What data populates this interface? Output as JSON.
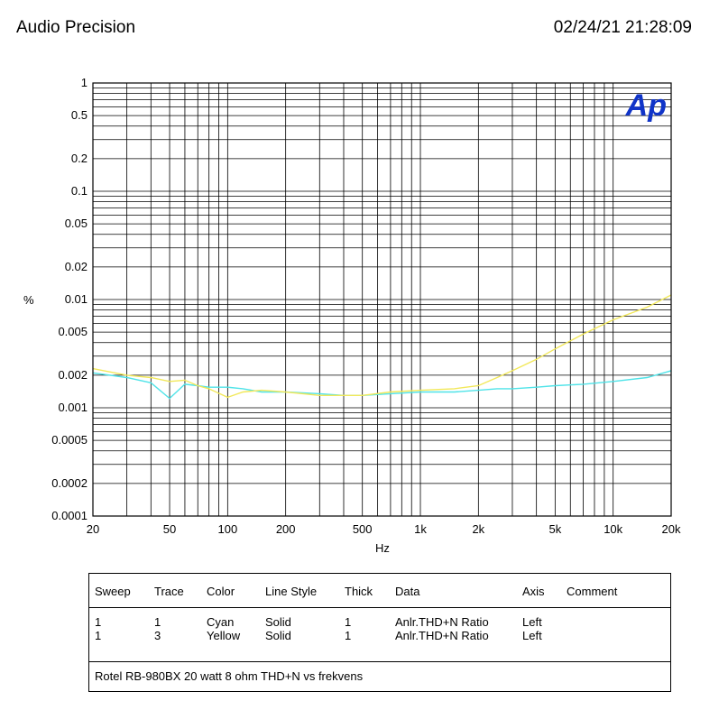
{
  "header": {
    "left": "Audio Precision",
    "right": "02/24/21 21:28:09"
  },
  "logo": "Ap",
  "colors": {
    "cyan": "#4fe3e8",
    "yellow": "#f2e85a",
    "logo": "#1034c8",
    "grid": "#000000"
  },
  "chart_data": {
    "type": "line",
    "xscale": "log",
    "yscale": "log",
    "xlim": [
      20,
      20000
    ],
    "ylim": [
      0.0001,
      1
    ],
    "xlabel": "Hz",
    "ylabel": "%",
    "grid": true,
    "xticks": [
      {
        "v": 20,
        "label": "20"
      },
      {
        "v": 50,
        "label": "50"
      },
      {
        "v": 100,
        "label": "100"
      },
      {
        "v": 200,
        "label": "200"
      },
      {
        "v": 500,
        "label": "500"
      },
      {
        "v": 1000,
        "label": "1k"
      },
      {
        "v": 2000,
        "label": "2k"
      },
      {
        "v": 5000,
        "label": "5k"
      },
      {
        "v": 10000,
        "label": "10k"
      },
      {
        "v": 20000,
        "label": "20k"
      }
    ],
    "yticks": [
      {
        "v": 1,
        "label": "1"
      },
      {
        "v": 0.5,
        "label": "0.5"
      },
      {
        "v": 0.2,
        "label": "0.2"
      },
      {
        "v": 0.1,
        "label": "0.1"
      },
      {
        "v": 0.05,
        "label": "0.05"
      },
      {
        "v": 0.02,
        "label": "0.02"
      },
      {
        "v": 0.01,
        "label": "0.01"
      },
      {
        "v": 0.005,
        "label": "0.005"
      },
      {
        "v": 0.002,
        "label": "0.002"
      },
      {
        "v": 0.001,
        "label": "0.001"
      },
      {
        "v": 0.0005,
        "label": "0.0005"
      },
      {
        "v": 0.0002,
        "label": "0.0002"
      },
      {
        "v": 0.0001,
        "label": "0.0001"
      }
    ],
    "series": [
      {
        "name": "Cyan",
        "color": "#4fe3e8",
        "x": [
          20,
          30,
          40,
          50,
          60,
          70,
          80,
          100,
          120,
          150,
          200,
          300,
          400,
          500,
          700,
          1000,
          1500,
          2000,
          2500,
          3000,
          4000,
          5000,
          7000,
          10000,
          15000,
          20000
        ],
        "y": [
          0.0021,
          0.0019,
          0.0017,
          0.00122,
          0.00165,
          0.0016,
          0.00155,
          0.00155,
          0.0015,
          0.0014,
          0.0014,
          0.00135,
          0.0013,
          0.0013,
          0.00135,
          0.0014,
          0.0014,
          0.00145,
          0.0015,
          0.0015,
          0.00155,
          0.0016,
          0.00165,
          0.00175,
          0.0019,
          0.0022
        ]
      },
      {
        "name": "Yellow",
        "color": "#f2e85a",
        "x": [
          20,
          30,
          40,
          50,
          60,
          70,
          80,
          100,
          120,
          150,
          200,
          300,
          400,
          500,
          700,
          1000,
          1500,
          2000,
          2500,
          3000,
          4000,
          5000,
          7000,
          10000,
          15000,
          20000
        ],
        "y": [
          0.0023,
          0.002,
          0.0019,
          0.00175,
          0.0018,
          0.0016,
          0.0015,
          0.00125,
          0.0014,
          0.00145,
          0.0014,
          0.0013,
          0.0013,
          0.0013,
          0.0014,
          0.00145,
          0.0015,
          0.0016,
          0.0019,
          0.0022,
          0.0028,
          0.0035,
          0.0048,
          0.0065,
          0.0085,
          0.011
        ]
      }
    ]
  },
  "legend": {
    "headers": [
      "Sweep",
      "Trace",
      "Color",
      "Line Style",
      "Thick",
      "Data",
      "Axis",
      "Comment"
    ],
    "rows": [
      [
        "1",
        "1",
        "Cyan",
        "Solid",
        "1",
        "Anlr.THD+N Ratio",
        "Left",
        ""
      ],
      [
        "1",
        "3",
        "Yellow",
        "Solid",
        "1",
        "Anlr.THD+N Ratio",
        "Left",
        ""
      ]
    ],
    "caption": "Rotel RB-980BX 20 watt 8 ohm THD+N vs frekvens"
  }
}
